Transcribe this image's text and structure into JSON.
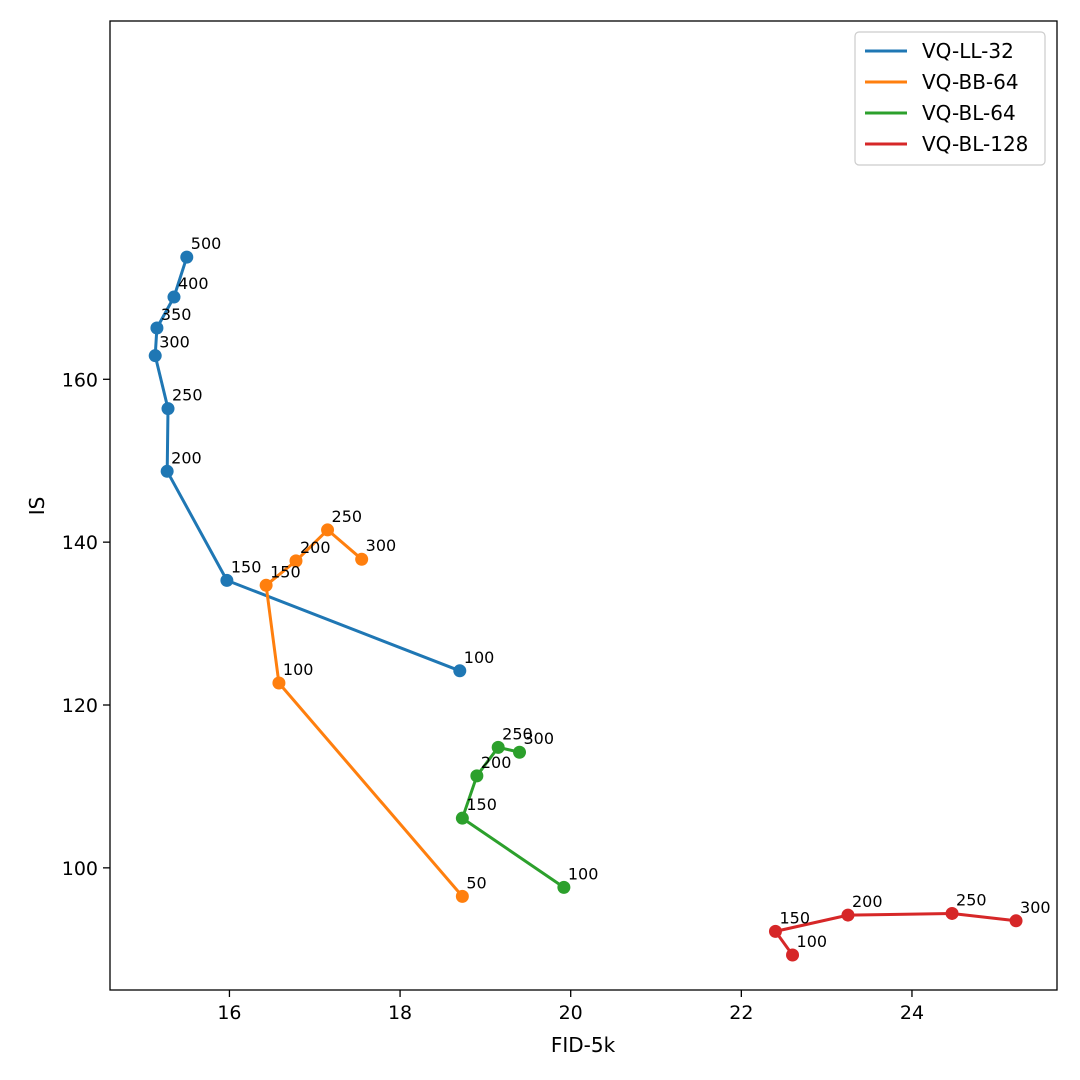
{
  "chart_data": {
    "type": "line",
    "title": "",
    "xlabel": "FID-5k",
    "ylabel": "IS",
    "xlim": [
      14.6,
      25.7
    ],
    "ylim": [
      85,
      204
    ],
    "xticks": [
      16,
      18,
      20,
      22,
      24
    ],
    "yticks": [
      100,
      120,
      140,
      160
    ],
    "grid": false,
    "legend_position": "top-right",
    "series": [
      {
        "name": "VQ-LL-32",
        "color": "#1f77b4",
        "points": [
          {
            "x": 18.7,
            "y": 124.2,
            "label": "100"
          },
          {
            "x": 15.97,
            "y": 135.3,
            "label": "150"
          },
          {
            "x": 15.27,
            "y": 148.7,
            "label": "200"
          },
          {
            "x": 15.28,
            "y": 156.4,
            "label": "250"
          },
          {
            "x": 15.13,
            "y": 162.9,
            "label": "300"
          },
          {
            "x": 15.15,
            "y": 166.3,
            "label": "350"
          },
          {
            "x": 15.35,
            "y": 170.1,
            "label": "400"
          },
          {
            "x": 15.5,
            "y": 175.0,
            "label": "500"
          }
        ]
      },
      {
        "name": "VQ-BB-64",
        "color": "#ff7f0e",
        "points": [
          {
            "x": 18.73,
            "y": 96.5,
            "label": "50"
          },
          {
            "x": 16.58,
            "y": 122.7,
            "label": "100"
          },
          {
            "x": 16.43,
            "y": 134.7,
            "label": "150"
          },
          {
            "x": 16.78,
            "y": 137.7,
            "label": "200"
          },
          {
            "x": 17.15,
            "y": 141.5,
            "label": "250"
          },
          {
            "x": 17.55,
            "y": 137.9,
            "label": "300"
          }
        ]
      },
      {
        "name": "VQ-BL-64",
        "color": "#2ca02c",
        "points": [
          {
            "x": 19.92,
            "y": 97.6,
            "label": "100"
          },
          {
            "x": 18.73,
            "y": 106.1,
            "label": "150"
          },
          {
            "x": 18.9,
            "y": 111.3,
            "label": "200"
          },
          {
            "x": 19.15,
            "y": 114.8,
            "label": "250"
          },
          {
            "x": 19.4,
            "y": 114.2,
            "label": "300"
          }
        ]
      },
      {
        "name": "VQ-BL-128",
        "color": "#d62728",
        "points": [
          {
            "x": 22.6,
            "y": 89.3,
            "label": "100"
          },
          {
            "x": 22.4,
            "y": 92.2,
            "label": "150"
          },
          {
            "x": 23.25,
            "y": 94.2,
            "label": "200"
          },
          {
            "x": 24.47,
            "y": 94.4,
            "label": "250"
          },
          {
            "x": 25.22,
            "y": 93.5,
            "label": "300"
          }
        ]
      }
    ]
  }
}
